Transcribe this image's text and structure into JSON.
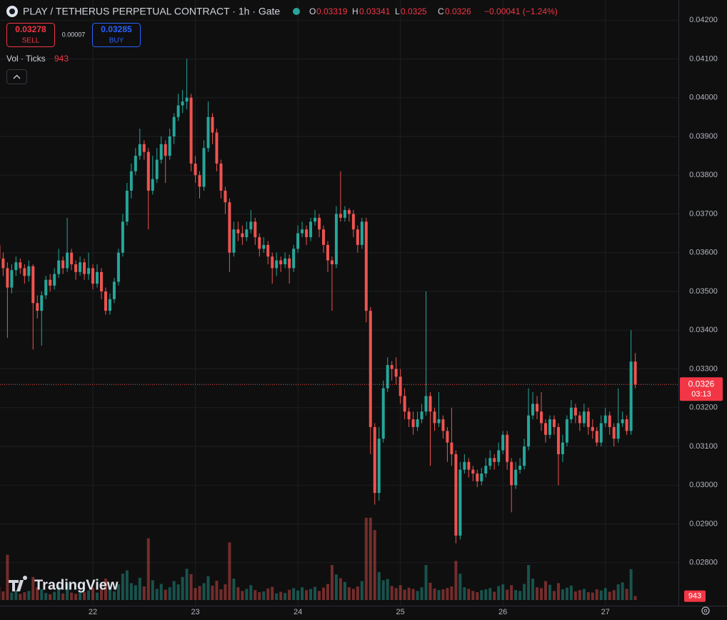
{
  "header": {
    "symbol": "PLAY / TETHERUS PERPETUAL CONTRACT · 1h · Gate",
    "o_label": "O",
    "h_label": "H",
    "l_label": "L",
    "c_label": "C",
    "change": "−0.00041 (−1.24%)"
  },
  "trade": {
    "sell_price": "0.03278",
    "sell_label": "SELL",
    "spread": "0.00007",
    "buy_price": "0.03285",
    "buy_label": "BUY"
  },
  "volume_legend": "Vol · Ticks",
  "countdown": "03:13",
  "watermark": "TradingView",
  "chart_data": {
    "type": "candlestick",
    "up_color": "#26a69a",
    "down_color": "#ef5350",
    "grid": true,
    "xlim": [
      0.26,
      159.1
    ],
    "ylim": [
      0.02689,
      0.04252
    ],
    "volume_ylim": [
      0,
      33000
    ],
    "xticks": [
      {
        "value": 22,
        "label": "22"
      },
      {
        "value": 46,
        "label": "23"
      },
      {
        "value": 70,
        "label": "24"
      },
      {
        "value": 94,
        "label": "25"
      },
      {
        "value": 118,
        "label": "26"
      },
      {
        "value": 142,
        "label": "27"
      }
    ],
    "yticks": [
      {
        "value": 0.028,
        "label": "0.02800"
      },
      {
        "value": 0.029,
        "label": "0.02900"
      },
      {
        "value": 0.03,
        "label": "0.03000"
      },
      {
        "value": 0.031,
        "label": "0.03100"
      },
      {
        "value": 0.032,
        "label": "0.03200"
      },
      {
        "value": 0.033,
        "label": "0.03300"
      },
      {
        "value": 0.034,
        "label": "0.03400"
      },
      {
        "value": 0.035,
        "label": "0.03500"
      },
      {
        "value": 0.036,
        "label": "0.03600"
      },
      {
        "value": 0.037,
        "label": "0.03700"
      },
      {
        "value": 0.038,
        "label": "0.03800"
      },
      {
        "value": 0.039,
        "label": "0.03900"
      },
      {
        "value": 0.04,
        "label": "0.04000"
      },
      {
        "value": 0.041,
        "label": "0.04100"
      },
      {
        "value": 0.042,
        "label": "0.04200"
      }
    ],
    "open": [
      0.0362,
      0.03585,
      0.0356,
      0.0351,
      0.03555,
      0.03575,
      0.0356,
      0.0354,
      0.03565,
      0.0347,
      0.0345,
      0.0349,
      0.0353,
      0.03515,
      0.03545,
      0.0358,
      0.0356,
      0.036,
      0.0357,
      0.0355,
      0.03575,
      0.03545,
      0.0356,
      0.0352,
      0.0355,
      0.035,
      0.0345,
      0.0348,
      0.03525,
      0.036,
      0.0368,
      0.0376,
      0.0381,
      0.0385,
      0.0388,
      0.0386,
      0.0376,
      0.0379,
      0.0384,
      0.0388,
      0.0385,
      0.039,
      0.0395,
      0.0398,
      0.0399,
      0.04,
      0.0383,
      0.038,
      0.0377,
      0.0387,
      0.0395,
      0.0391,
      0.0383,
      0.0376,
      0.0373,
      0.036,
      0.0366,
      0.0365,
      0.0364,
      0.0366,
      0.0368,
      0.0364,
      0.0361,
      0.0362,
      0.0359,
      0.0356,
      0.0358,
      0.0357,
      0.03585,
      0.0356,
      0.0361,
      0.0365,
      0.0366,
      0.0364,
      0.0368,
      0.0369,
      0.0366,
      0.0362,
      0.0358,
      0.0357,
      0.037,
      0.0369,
      0.0371,
      0.037,
      0.0366,
      0.0362,
      0.0368,
      0.0345,
      0.0315,
      0.0298,
      0.0312,
      0.0325,
      0.0331,
      0.033,
      0.0328,
      0.0323,
      0.0319,
      0.0317,
      0.0315,
      0.0317,
      0.0319,
      0.0323,
      0.0319,
      0.0316,
      0.0317,
      0.0314,
      0.0311,
      0.0308,
      0.0287,
      0.0304,
      0.0306,
      0.0304,
      0.0303,
      0.0301,
      0.0303,
      0.0305,
      0.0307,
      0.0306,
      0.0309,
      0.0313,
      0.0306,
      0.03,
      0.0304,
      0.0305,
      0.031,
      0.0318,
      0.0321,
      0.0319,
      0.0316,
      0.0313,
      0.0317,
      0.0315,
      0.0308,
      0.0311,
      0.0317,
      0.032,
      0.0318,
      0.0316,
      0.0319,
      0.0315,
      0.0314,
      0.0311,
      0.0316,
      0.0318,
      0.0315,
      0.0312,
      0.0316,
      0.0317,
      0.0314,
      0.03319
    ],
    "high": [
      0.0364,
      0.036,
      0.03575,
      0.0357,
      0.0359,
      0.03585,
      0.0357,
      0.0358,
      0.0357,
      0.0349,
      0.035,
      0.0354,
      0.03545,
      0.0356,
      0.0361,
      0.0359,
      0.0369,
      0.0361,
      0.0358,
      0.0359,
      0.03585,
      0.036,
      0.0357,
      0.0357,
      0.0356,
      0.0351,
      0.03495,
      0.03535,
      0.0361,
      0.037,
      0.0378,
      0.0383,
      0.0387,
      0.0392,
      0.0389,
      0.0387,
      0.0385,
      0.0387,
      0.039,
      0.0389,
      0.0392,
      0.0396,
      0.0401,
      0.0402,
      0.041,
      0.0401,
      0.0385,
      0.0381,
      0.0389,
      0.0399,
      0.0396,
      0.0392,
      0.0384,
      0.0377,
      0.0374,
      0.0368,
      0.0368,
      0.0367,
      0.0368,
      0.0371,
      0.0369,
      0.0365,
      0.0364,
      0.0363,
      0.036,
      0.036,
      0.0359,
      0.036,
      0.03595,
      0.0362,
      0.0367,
      0.0368,
      0.0367,
      0.0369,
      0.0371,
      0.037,
      0.0367,
      0.0363,
      0.0359,
      0.0372,
      0.0381,
      0.0372,
      0.03715,
      0.0371,
      0.0367,
      0.0369,
      0.0369,
      0.0346,
      0.0316,
      0.0315,
      0.0327,
      0.0333,
      0.0332,
      0.0333,
      0.033,
      0.0325,
      0.032,
      0.0319,
      0.0319,
      0.0321,
      0.035,
      0.0324,
      0.032,
      0.0324,
      0.0318,
      0.0315,
      0.032,
      0.0309,
      0.0306,
      0.0308,
      0.0307,
      0.0305,
      0.0304,
      0.03045,
      0.0307,
      0.0309,
      0.0308,
      0.0311,
      0.0314,
      0.0314,
      0.0307,
      0.0306,
      0.0307,
      0.0312,
      0.0325,
      0.0324,
      0.0323,
      0.0324,
      0.0317,
      0.0318,
      0.0318,
      0.0316,
      0.0313,
      0.0318,
      0.0322,
      0.0321,
      0.0319,
      0.0321,
      0.032,
      0.0317,
      0.0315,
      0.0318,
      0.032,
      0.0319,
      0.0316,
      0.0325,
      0.0319,
      0.0318,
      0.034,
      0.03341
    ],
    "low": [
      0.0357,
      0.0354,
      0.0338,
      0.03495,
      0.0354,
      0.03545,
      0.0352,
      0.03525,
      0.0335,
      0.0343,
      0.0336,
      0.0348,
      0.035,
      0.03505,
      0.03535,
      0.03545,
      0.0355,
      0.03555,
      0.0353,
      0.0354,
      0.0353,
      0.0353,
      0.03505,
      0.0351,
      0.0348,
      0.0344,
      0.0344,
      0.0347,
      0.03515,
      0.0359,
      0.0367,
      0.0374,
      0.038,
      0.0384,
      0.0384,
      0.0366,
      0.0375,
      0.0378,
      0.0383,
      0.0378,
      0.0384,
      0.0388,
      0.0394,
      0.0396,
      0.0397,
      0.0381,
      0.0378,
      0.0374,
      0.0376,
      0.0386,
      0.0388,
      0.0381,
      0.0374,
      0.037,
      0.0355,
      0.0359,
      0.0363,
      0.0362,
      0.0363,
      0.0365,
      0.0362,
      0.0359,
      0.036,
      0.0357,
      0.0352,
      0.0354,
      0.0355,
      0.0356,
      0.0352,
      0.0355,
      0.036,
      0.0364,
      0.0362,
      0.0363,
      0.0367,
      0.0364,
      0.036,
      0.0355,
      0.0345,
      0.0356,
      0.0368,
      0.0368,
      0.0368,
      0.0364,
      0.036,
      0.0361,
      0.0342,
      0.0308,
      0.0295,
      0.0296,
      0.0311,
      0.0324,
      0.0327,
      0.0326,
      0.0321,
      0.0317,
      0.0315,
      0.0313,
      0.0314,
      0.0316,
      0.0318,
      0.0305,
      0.0314,
      0.0315,
      0.0312,
      0.0306,
      0.0305,
      0.0285,
      0.0286,
      0.0303,
      0.0302,
      0.0301,
      0.02995,
      0.03,
      0.0302,
      0.0304,
      0.0304,
      0.0305,
      0.0308,
      0.0304,
      0.0293,
      0.0299,
      0.0303,
      0.0304,
      0.0309,
      0.0317,
      0.0317,
      0.0314,
      0.0311,
      0.0312,
      0.0313,
      0.03,
      0.0306,
      0.031,
      0.0316,
      0.0316,
      0.0314,
      0.0315,
      0.0313,
      0.0312,
      0.031,
      0.031,
      0.0315,
      0.0313,
      0.031,
      0.0311,
      0.0315,
      0.0313,
      0.0313,
      0.0325
    ],
    "close": [
      0.03585,
      0.0356,
      0.0351,
      0.03555,
      0.03575,
      0.0356,
      0.0354,
      0.03565,
      0.0347,
      0.0345,
      0.0349,
      0.0353,
      0.03515,
      0.03545,
      0.0358,
      0.0356,
      0.036,
      0.0357,
      0.0355,
      0.03575,
      0.03545,
      0.0356,
      0.0352,
      0.0355,
      0.035,
      0.0345,
      0.0348,
      0.03525,
      0.036,
      0.0368,
      0.0376,
      0.0381,
      0.0385,
      0.0388,
      0.0386,
      0.0376,
      0.0379,
      0.0384,
      0.0388,
      0.0385,
      0.039,
      0.0395,
      0.0398,
      0.0399,
      0.04,
      0.0383,
      0.038,
      0.0377,
      0.0387,
      0.0395,
      0.0391,
      0.0383,
      0.0376,
      0.0373,
      0.036,
      0.0366,
      0.0365,
      0.0364,
      0.0366,
      0.0368,
      0.0364,
      0.0361,
      0.0362,
      0.0359,
      0.0356,
      0.0358,
      0.0357,
      0.03585,
      0.0356,
      0.0361,
      0.0365,
      0.0366,
      0.0364,
      0.0368,
      0.0369,
      0.0366,
      0.0362,
      0.0358,
      0.0357,
      0.037,
      0.0369,
      0.0371,
      0.037,
      0.0366,
      0.0362,
      0.0368,
      0.0345,
      0.0315,
      0.0298,
      0.0312,
      0.0325,
      0.0331,
      0.033,
      0.0328,
      0.0323,
      0.0319,
      0.0317,
      0.0315,
      0.0317,
      0.0319,
      0.0323,
      0.0319,
      0.0316,
      0.0317,
      0.0314,
      0.0311,
      0.0308,
      0.0287,
      0.0304,
      0.0306,
      0.0304,
      0.0303,
      0.0301,
      0.0303,
      0.0305,
      0.0307,
      0.0306,
      0.0309,
      0.0313,
      0.0306,
      0.03,
      0.0304,
      0.0305,
      0.031,
      0.0318,
      0.0321,
      0.0319,
      0.0316,
      0.0313,
      0.0317,
      0.0315,
      0.0308,
      0.0311,
      0.0317,
      0.032,
      0.0318,
      0.0316,
      0.0319,
      0.0315,
      0.0314,
      0.0311,
      0.0316,
      0.0318,
      0.0315,
      0.0312,
      0.0316,
      0.0317,
      0.0314,
      0.03319,
      0.0326
    ],
    "volume": [
      3200,
      2100,
      11000,
      1800,
      2400,
      1500,
      1900,
      2200,
      5600,
      3100,
      2600,
      1700,
      1400,
      2000,
      3400,
      1600,
      4200,
      1800,
      1500,
      2100,
      1900,
      2300,
      3000,
      1800,
      2600,
      5200,
      3300,
      2100,
      3800,
      6400,
      7200,
      4100,
      3600,
      5400,
      3300,
      15000,
      4800,
      2700,
      3900,
      2500,
      3100,
      4600,
      3800,
      5600,
      7600,
      6300,
      2900,
      3400,
      4100,
      5800,
      3500,
      4700,
      2600,
      3800,
      14000,
      5200,
      3100,
      2200,
      2700,
      3600,
      2400,
      1900,
      2100,
      2800,
      3200,
      1600,
      2000,
      1700,
      2500,
      2900,
      2300,
      3100,
      2400,
      2700,
      3200,
      2200,
      3000,
      3900,
      8500,
      6200,
      5300,
      4400,
      3100,
      2700,
      3300,
      4600,
      20000,
      20000,
      17000,
      6800,
      4800,
      5100,
      3400,
      2900,
      3600,
      2500,
      3000,
      2700,
      2200,
      3100,
      8500,
      4200,
      2800,
      2400,
      2600,
      2900,
      3300,
      9500,
      6400,
      3100,
      2700,
      2200,
      1900,
      2400,
      2600,
      2900,
      2000,
      3400,
      3800,
      2500,
      3600,
      2400,
      2200,
      3900,
      8500,
      5200,
      3100,
      2900,
      4600,
      3700,
      2200,
      4100,
      2600,
      3000,
      3500,
      2100,
      2400,
      2700,
      1900,
      1800,
      2600,
      2300,
      2900,
      2000,
      2400,
      3800,
      4300,
      2700,
      7500,
      943
    ]
  }
}
